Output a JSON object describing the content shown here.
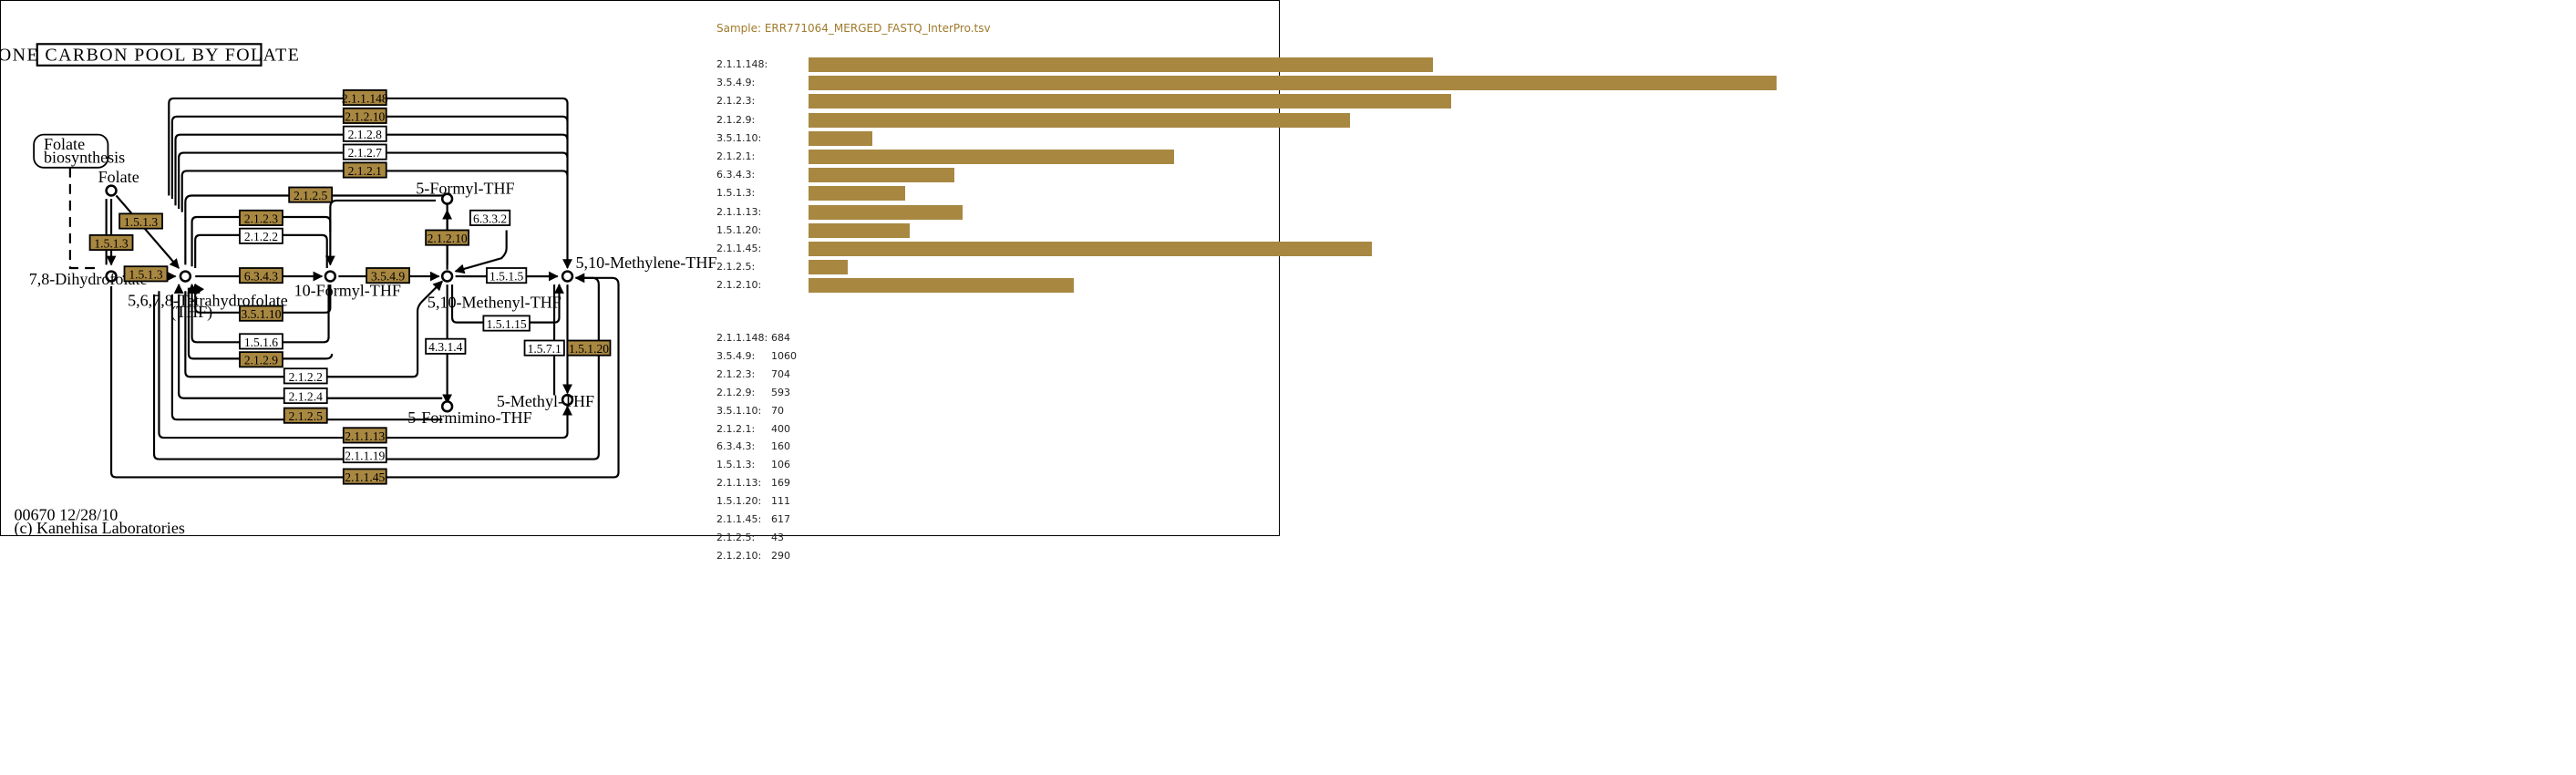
{
  "map": {
    "title": "ONE CARBON POOL BY FOLATE",
    "footer_id": "00670 12/28/10",
    "footer_copy": "(c) Kanehisa Laboratories",
    "colors": {
      "found": "#a88741",
      "not_found": "#ffffff"
    },
    "compounds": {
      "folate": "Folate",
      "folate_bio_1": "Folate",
      "folate_bio_2": "biosynthesis",
      "dhf": "7,8-Dihydrofolate",
      "thf_1": "5,6,7,8-Tetrahydrofolate",
      "thf_2": "(THF)",
      "formyl10": "10-Formyl-THF",
      "formyl5": "5-Formyl-THF",
      "methenyl": "5,10-Methenyl-THF",
      "methylene": "5,10-Methylene-THF",
      "formimino": "5-Formimino-THF",
      "methyl": "5-Methyl-THF"
    },
    "enzymes": [
      {
        "id": "e1",
        "label": "2.1.1.148",
        "found": true
      },
      {
        "id": "e2",
        "label": "2.1.2.10",
        "found": true
      },
      {
        "id": "e3",
        "label": "2.1.2.8",
        "found": false
      },
      {
        "id": "e4",
        "label": "2.1.2.7",
        "found": false
      },
      {
        "id": "e5",
        "label": "2.1.2.1",
        "found": true
      },
      {
        "id": "e6",
        "label": "2.1.2.5",
        "found": true
      },
      {
        "id": "e7",
        "label": "2.1.2.3",
        "found": true
      },
      {
        "id": "e8",
        "label": "2.1.2.2",
        "found": false
      },
      {
        "id": "e9",
        "label": "1.5.1.3",
        "found": true
      },
      {
        "id": "e10",
        "label": "1.5.1.3",
        "found": true
      },
      {
        "id": "e11",
        "label": "1.5.1.3",
        "found": true
      },
      {
        "id": "e12",
        "label": "6.3.4.3",
        "found": true
      },
      {
        "id": "e13",
        "label": "3.5.4.9",
        "found": true
      },
      {
        "id": "e14",
        "label": "6.3.3.2",
        "found": false
      },
      {
        "id": "e15",
        "label": "2.1.2.10",
        "found": true
      },
      {
        "id": "e16",
        "label": "1.5.1.5",
        "found": false
      },
      {
        "id": "e17",
        "label": "3.5.1.10",
        "found": true
      },
      {
        "id": "e18",
        "label": "1.5.1.6",
        "found": false
      },
      {
        "id": "e19",
        "label": "2.1.2.9",
        "found": true
      },
      {
        "id": "e20",
        "label": "1.5.1.15",
        "found": false
      },
      {
        "id": "e21",
        "label": "4.3.1.4",
        "found": false
      },
      {
        "id": "e22",
        "label": "1.5.7.1",
        "found": false
      },
      {
        "id": "e23",
        "label": "1.5.1.20",
        "found": true
      },
      {
        "id": "e24",
        "label": "2.1.2.2",
        "found": false
      },
      {
        "id": "e25",
        "label": "2.1.2.4",
        "found": false
      },
      {
        "id": "e26",
        "label": "2.1.2.5",
        "found": true
      },
      {
        "id": "e27",
        "label": "2.1.1.13",
        "found": true
      },
      {
        "id": "e28",
        "label": "2.1.1.19",
        "found": false
      },
      {
        "id": "e29",
        "label": "2.1.1.45",
        "found": true
      }
    ]
  },
  "panel": {
    "sample_title": "Sample: ERR771064_MERGED_FASTQ_InterPro.tsv"
  },
  "chart_data": {
    "type": "bar",
    "orientation": "horizontal",
    "categories": [
      "2.1.1.148:",
      "3.5.4.9:",
      "2.1.2.3:",
      "2.1.2.9:",
      "3.5.1.10:",
      "2.1.2.1:",
      "6.3.4.3:",
      "1.5.1.3:",
      "2.1.1.13:",
      "1.5.1.20:",
      "2.1.1.45:",
      "2.1.2.5:",
      "2.1.2.10:"
    ],
    "values": [
      684,
      1060,
      704,
      593,
      70,
      400,
      160,
      106,
      169,
      111,
      617,
      43,
      290
    ],
    "xlim": [
      0,
      1060
    ],
    "bar_color": "#a88741",
    "grid": false,
    "legend": "none"
  }
}
